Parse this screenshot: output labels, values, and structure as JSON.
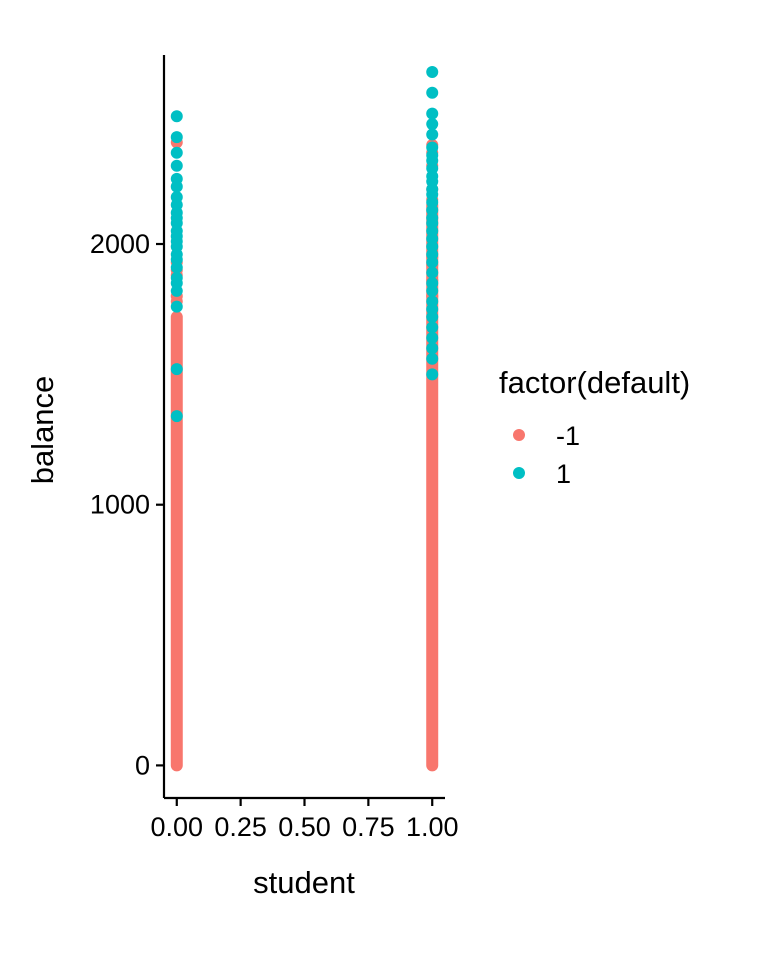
{
  "chart_data": {
    "type": "scatter",
    "title": "",
    "xlabel": "student",
    "ylabel": "balance",
    "xlim": [
      -0.05,
      1.05
    ],
    "ylim": [
      -125,
      2725
    ],
    "x_ticks": [
      0,
      0.25,
      0.5,
      0.75,
      1
    ],
    "x_tick_labels": [
      "0.00",
      "0.25",
      "0.50",
      "0.75",
      "1.00"
    ],
    "y_ticks": [
      0,
      1000,
      2000
    ],
    "y_tick_labels": [
      "0",
      "1000",
      "2000"
    ],
    "grid": false,
    "legend": {
      "title": "factor(default)",
      "position": "right",
      "entries": [
        {
          "label": "-1",
          "color": "#F8766D"
        },
        {
          "label": "1",
          "color": "#00BFC4"
        }
      ]
    },
    "series": [
      {
        "name": "-1",
        "color": "#F8766D",
        "ranges": [
          {
            "x": 0,
            "y_min": 0,
            "y_max": 1720
          },
          {
            "x": 1,
            "y_min": 0,
            "y_max": 2150
          }
        ],
        "points": [
          {
            "x": 0,
            "y": 2390
          },
          {
            "x": 0,
            "y": 1930
          },
          {
            "x": 0,
            "y": 1900
          },
          {
            "x": 0,
            "y": 1880
          },
          {
            "x": 0,
            "y": 1800
          },
          {
            "x": 0,
            "y": 1780
          },
          {
            "x": 1,
            "y": 2380
          },
          {
            "x": 1,
            "y": 2350
          },
          {
            "x": 1,
            "y": 2300
          },
          {
            "x": 1,
            "y": 2210
          },
          {
            "x": 1,
            "y": 2170
          },
          {
            "x": 1,
            "y": 1950
          },
          {
            "x": 1,
            "y": 1920
          },
          {
            "x": 1,
            "y": 1860
          },
          {
            "x": 1,
            "y": 1800
          }
        ]
      },
      {
        "name": "1",
        "color": "#00BFC4",
        "points": [
          {
            "x": 0,
            "y": 2490
          },
          {
            "x": 0,
            "y": 2410
          },
          {
            "x": 0,
            "y": 2350
          },
          {
            "x": 0,
            "y": 2300
          },
          {
            "x": 0,
            "y": 2250
          },
          {
            "x": 0,
            "y": 2220
          },
          {
            "x": 0,
            "y": 2180
          },
          {
            "x": 0,
            "y": 2150
          },
          {
            "x": 0,
            "y": 2120
          },
          {
            "x": 0,
            "y": 2100
          },
          {
            "x": 0,
            "y": 2080
          },
          {
            "x": 0,
            "y": 2050
          },
          {
            "x": 0,
            "y": 2030
          },
          {
            "x": 0,
            "y": 2010
          },
          {
            "x": 0,
            "y": 1990
          },
          {
            "x": 0,
            "y": 1960
          },
          {
            "x": 0,
            "y": 1940
          },
          {
            "x": 0,
            "y": 1910
          },
          {
            "x": 0,
            "y": 1870
          },
          {
            "x": 0,
            "y": 1850
          },
          {
            "x": 0,
            "y": 1820
          },
          {
            "x": 0,
            "y": 1760
          },
          {
            "x": 0,
            "y": 1520
          },
          {
            "x": 0,
            "y": 1340
          },
          {
            "x": 1,
            "y": 2660
          },
          {
            "x": 1,
            "y": 2580
          },
          {
            "x": 1,
            "y": 2500
          },
          {
            "x": 1,
            "y": 2460
          },
          {
            "x": 1,
            "y": 2420
          },
          {
            "x": 1,
            "y": 2370
          },
          {
            "x": 1,
            "y": 2340
          },
          {
            "x": 1,
            "y": 2320
          },
          {
            "x": 1,
            "y": 2290
          },
          {
            "x": 1,
            "y": 2260
          },
          {
            "x": 1,
            "y": 2240
          },
          {
            "x": 1,
            "y": 2210
          },
          {
            "x": 1,
            "y": 2190
          },
          {
            "x": 1,
            "y": 2160
          },
          {
            "x": 1,
            "y": 2130
          },
          {
            "x": 1,
            "y": 2100
          },
          {
            "x": 1,
            "y": 2080
          },
          {
            "x": 1,
            "y": 2050
          },
          {
            "x": 1,
            "y": 2020
          },
          {
            "x": 1,
            "y": 1990
          },
          {
            "x": 1,
            "y": 1960
          },
          {
            "x": 1,
            "y": 1930
          },
          {
            "x": 1,
            "y": 1890
          },
          {
            "x": 1,
            "y": 1850
          },
          {
            "x": 1,
            "y": 1820
          },
          {
            "x": 1,
            "y": 1780
          },
          {
            "x": 1,
            "y": 1750
          },
          {
            "x": 1,
            "y": 1720
          },
          {
            "x": 1,
            "y": 1680
          },
          {
            "x": 1,
            "y": 1640
          },
          {
            "x": 1,
            "y": 1600
          },
          {
            "x": 1,
            "y": 1560
          },
          {
            "x": 1,
            "y": 1500
          }
        ]
      }
    ]
  }
}
